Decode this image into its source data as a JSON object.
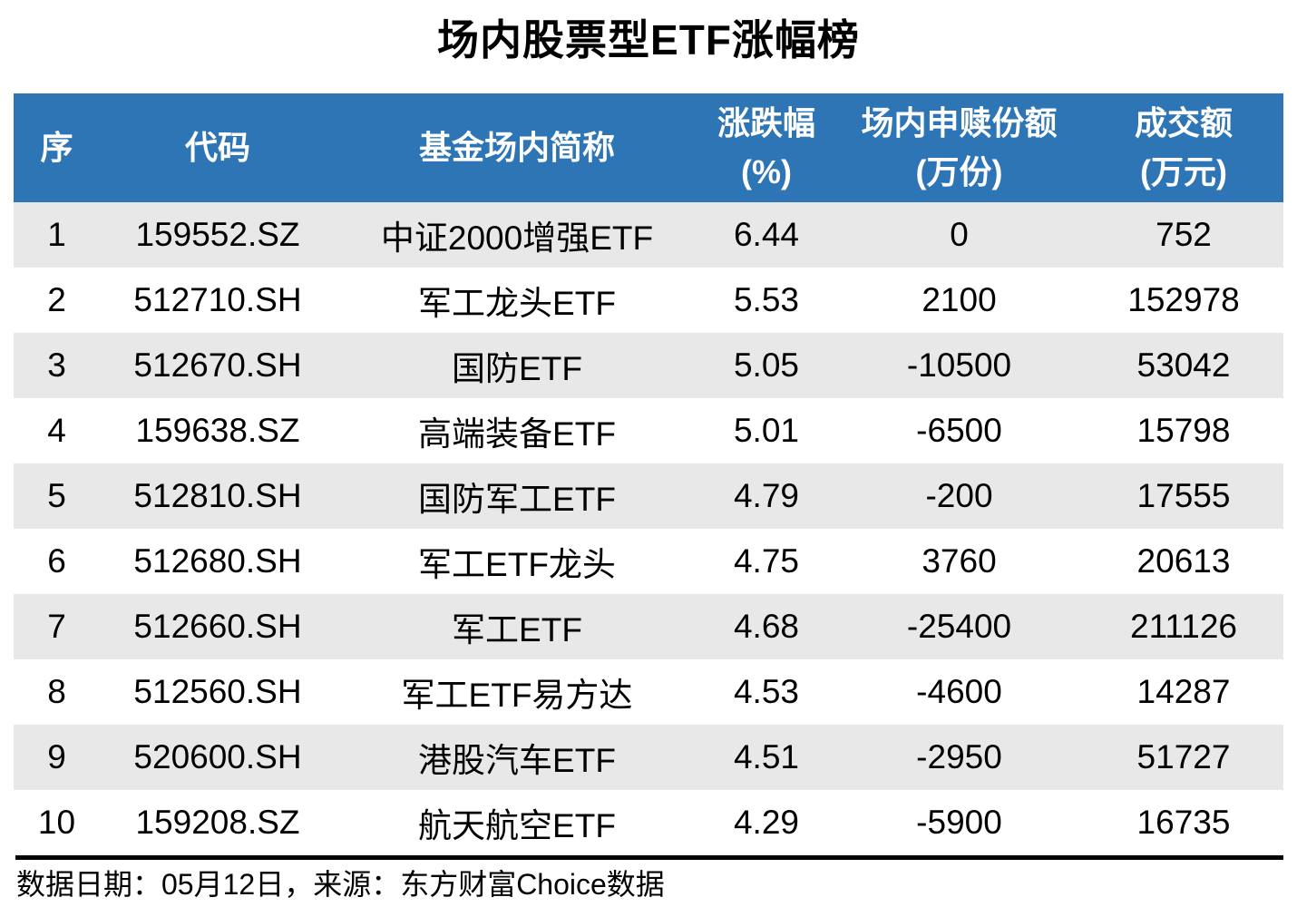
{
  "title": "场内股票型ETF涨幅榜",
  "colors": {
    "header_bg": "#2E75B6",
    "header_text": "#FFFFFF",
    "row_alt_bg": "#E8E8E8",
    "row_bg": "#FFFFFF",
    "text": "#000000",
    "divider": "#000000"
  },
  "table": {
    "columns": [
      {
        "key": "index",
        "label": "序",
        "unit": ""
      },
      {
        "key": "code",
        "label": "代码",
        "unit": ""
      },
      {
        "key": "name",
        "label": "基金场内简称",
        "unit": ""
      },
      {
        "key": "change",
        "label": "涨跌幅",
        "unit": "(%)"
      },
      {
        "key": "flow",
        "label": "场内申赎份额",
        "unit": "(万份)"
      },
      {
        "key": "turnover",
        "label": "成交额",
        "unit": "(万元)"
      }
    ]
  },
  "chart_data": {
    "type": "table",
    "title": "场内股票型ETF涨幅榜",
    "columns": [
      "序",
      "代码",
      "基金场内简称",
      "涨跌幅(%)",
      "场内申赎份额(万份)",
      "成交额(万元)"
    ],
    "rows": [
      [
        1,
        "159552.SZ",
        "中证2000增强ETF",
        "6.44",
        "0",
        "752"
      ],
      [
        2,
        "512710.SH",
        "军工龙头ETF",
        "5.53",
        "2100",
        "152978"
      ],
      [
        3,
        "512670.SH",
        "国防ETF",
        "5.05",
        "-10500",
        "53042"
      ],
      [
        4,
        "159638.SZ",
        "高端装备ETF",
        "5.01",
        "-6500",
        "15798"
      ],
      [
        5,
        "512810.SH",
        "国防军工ETF",
        "4.79",
        "-200",
        "17555"
      ],
      [
        6,
        "512680.SH",
        "军工ETF龙头",
        "4.75",
        "3760",
        "20613"
      ],
      [
        7,
        "512660.SH",
        "军工ETF",
        "4.68",
        "-25400",
        "211126"
      ],
      [
        8,
        "512560.SH",
        "军工ETF易方达",
        "4.53",
        "-4600",
        "14287"
      ],
      [
        9,
        "520600.SH",
        "港股汽车ETF",
        "4.51",
        "-2950",
        "51727"
      ],
      [
        10,
        "159208.SZ",
        "航天航空ETF",
        "4.29",
        "-5900",
        "16735"
      ]
    ]
  },
  "footer": {
    "text": "数据日期：05月12日，来源：东方财富Choice数据"
  }
}
